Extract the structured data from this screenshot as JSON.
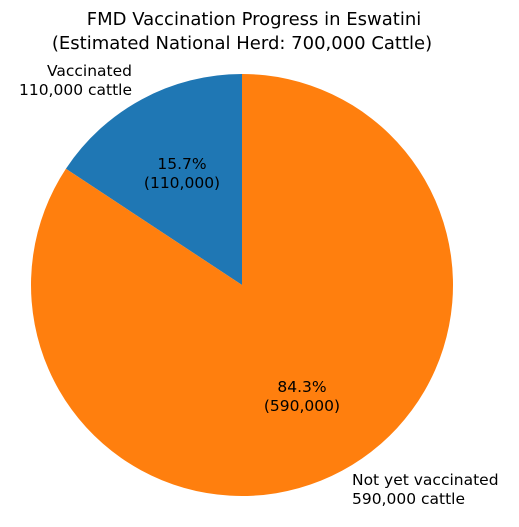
{
  "chart_data": {
    "type": "pie",
    "title_lines": [
      "FMD Vaccination Progress in Eswatini",
      "(Estimated National Herd: 700,000 Cattle)"
    ],
    "slices": [
      {
        "label_lines": [
          "Vaccinated",
          "110,000 cattle"
        ],
        "value": 110000,
        "percent_label": "15.7%",
        "value_label": "(110,000)",
        "color": "#1f77b4"
      },
      {
        "label_lines": [
          "Not yet vaccinated",
          "590,000 cattle"
        ],
        "value": 590000,
        "percent_label": "84.3%",
        "value_label": "(590,000)",
        "color": "#ff7f0e"
      }
    ],
    "start_angle": 90,
    "direction": "counterclockwise",
    "legend": "none"
  }
}
